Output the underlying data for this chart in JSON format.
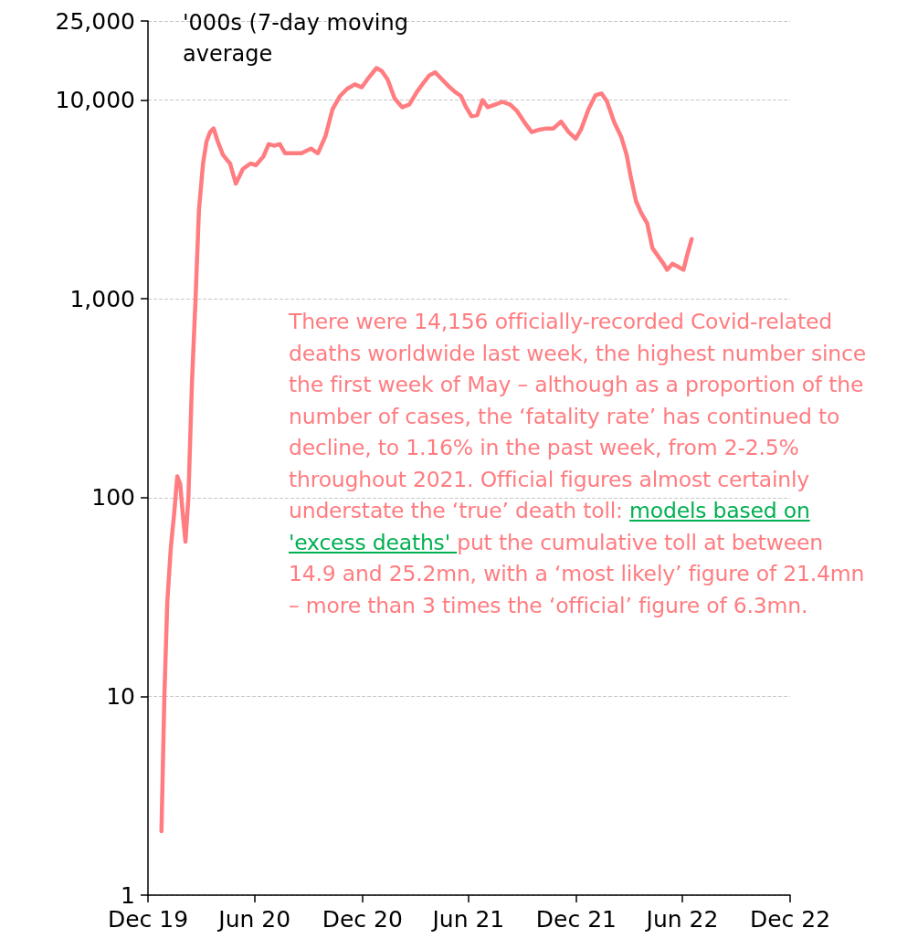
{
  "chart_data": {
    "type": "line",
    "ylabel": "'000s (7-day moving average",
    "annotations": [
      "There were 14,156 officially-recorded Covid-related deaths worldwide last week, the highest number since the first week of May – although as a proportion of the number of cases, the ‘fatality rate’ has continued to decline, to 1.16% in the past week, from 2-2.5% throughout 2021. Official figures almost certainly understate the ‘true’ death toll: ",
      "models based on 'excess deaths' ",
      "put the cumulative toll at between 14.9 and 25.2mn, with a ‘most likely’ figure of 21.4mn – more than 3 times the ‘official’ figure of 6.3mn."
    ],
    "x": [
      "2020-01-23",
      "2020-01-28",
      "2020-02-02",
      "2020-02-08",
      "2020-02-14",
      "2020-02-19",
      "2020-02-24",
      "2020-02-28",
      "2020-03-04",
      "2020-03-09",
      "2020-03-15",
      "2020-03-21",
      "2020-03-27",
      "2020-04-03",
      "2020-04-09",
      "2020-04-15",
      "2020-04-21",
      "2020-04-28",
      "2020-05-07",
      "2020-05-19",
      "2020-05-29",
      "2020-06-10",
      "2020-06-23",
      "2020-07-02",
      "2020-07-15",
      "2020-07-24",
      "2020-08-02",
      "2020-08-12",
      "2020-08-21",
      "2020-09-02",
      "2020-09-18",
      "2020-10-04",
      "2020-10-16",
      "2020-10-29",
      "2020-11-10",
      "2020-11-23",
      "2020-12-05",
      "2020-12-18",
      "2020-12-30",
      "2021-01-11",
      "2021-01-24",
      "2021-02-02",
      "2021-02-12",
      "2021-02-24",
      "2021-03-09",
      "2021-03-21",
      "2021-04-03",
      "2021-04-15",
      "2021-04-24",
      "2021-05-04",
      "2021-05-16",
      "2021-05-29",
      "2021-06-07",
      "2021-06-17",
      "2021-06-26",
      "2021-07-05",
      "2021-07-15",
      "2021-07-24",
      "2021-08-02",
      "2021-08-15",
      "2021-08-27",
      "2021-09-09",
      "2021-09-21",
      "2021-10-04",
      "2021-10-16",
      "2021-10-29",
      "2021-11-10",
      "2021-11-22",
      "2021-12-05",
      "2021-12-18",
      "2021-12-30",
      "2022-01-08",
      "2022-01-21",
      "2022-02-02",
      "2022-02-12",
      "2022-02-21",
      "2022-03-06",
      "2022-03-18",
      "2022-03-27",
      "2022-04-03",
      "2022-04-12",
      "2022-04-21",
      "2022-05-01",
      "2022-05-10",
      "2022-05-19",
      "2022-05-29",
      "2022-06-04",
      "2022-06-13",
      "2022-06-23",
      "2022-07-02",
      "2022-07-08",
      "2022-07-16"
    ],
    "series": [
      {
        "color": "#ff7c80",
        "values": [
          2.1,
          10,
          30,
          56,
          85,
          128,
          117,
          85,
          60,
          100,
          375,
          970,
          2800,
          4800,
          6200,
          6900,
          7200,
          6200,
          5300,
          4800,
          3800,
          4500,
          4800,
          4700,
          5200,
          6000,
          5900,
          6000,
          5400,
          5400,
          5400,
          5700,
          5400,
          6600,
          9000,
          10500,
          11400,
          12000,
          11600,
          13000,
          14500,
          14000,
          12700,
          10200,
          9200,
          9500,
          11000,
          12300,
          13300,
          13800,
          12700,
          11600,
          11000,
          10500,
          9200,
          8300,
          8400,
          10000,
          9200,
          9500,
          9800,
          9500,
          8800,
          7700,
          6900,
          7100,
          7200,
          7200,
          7800,
          6900,
          6400,
          7100,
          9000,
          10600,
          10800,
          9900,
          7700,
          6500,
          5300,
          4100,
          3100,
          2700,
          2400,
          1800,
          1650,
          1500,
          1400,
          1500,
          1450,
          1400,
          1650,
          2000
        ]
      }
    ],
    "xlim": [
      "2019-12-31",
      "2022-12-31"
    ],
    "xticks": [
      {
        "value": "2019-12-31",
        "label": "Dec 19"
      },
      {
        "value": "2020-06-30",
        "label": "Jun 20"
      },
      {
        "value": "2020-12-31",
        "label": "Dec 20"
      },
      {
        "value": "2021-06-30",
        "label": "Jun 21"
      },
      {
        "value": "2021-12-31",
        "label": "Dec 21"
      },
      {
        "value": "2022-06-30",
        "label": "Jun 22"
      },
      {
        "value": "2022-12-31",
        "label": "Dec 22"
      }
    ],
    "ylim": [
      1,
      25000
    ],
    "yticks": [
      1,
      10,
      100,
      {
        "value": 1000,
        "label": "1,000"
      },
      {
        "value": 10000,
        "label": "10,000"
      },
      {
        "value": 25000,
        "label": "25,000"
      }
    ],
    "log": "y",
    "grid": "y",
    "marker": "none",
    "line_style": "solid"
  }
}
